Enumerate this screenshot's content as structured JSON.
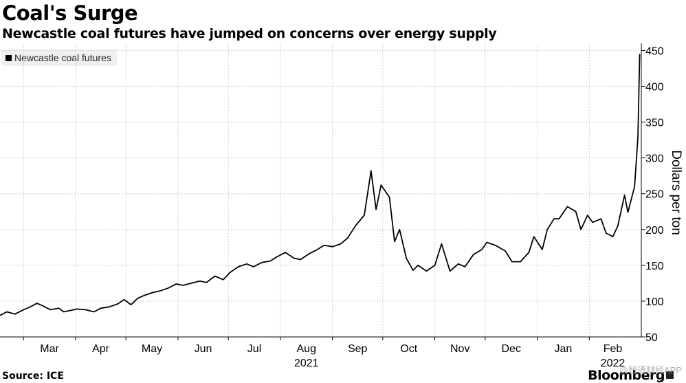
{
  "title": "Coal's Surge",
  "subtitle": "Newcastle coal futures have jumped on concerns over energy supply",
  "source": "Source: ICE",
  "brand": "Bloomberg",
  "watermark": "@智通财经APP",
  "colors": {
    "line": "#000000",
    "grid": "#cfcfcf",
    "legend_bg": "#f0f0f0"
  },
  "chart_data": {
    "type": "line",
    "title": "Coal's Surge",
    "subtitle": "Newcastle coal futures have jumped on concerns over energy supply",
    "ylabel": "Dollars per ton",
    "ylim": [
      50,
      460
    ],
    "yticks": [
      50,
      100,
      150,
      200,
      250,
      300,
      350,
      400,
      450
    ],
    "grid": true,
    "legend_position": "top-left",
    "x_range": [
      "2021-02-15",
      "2022-03-04"
    ],
    "x_month_ticks": [
      {
        "label": "Mar",
        "date": "2021-03-01"
      },
      {
        "label": "Apr",
        "date": "2021-04-01"
      },
      {
        "label": "May",
        "date": "2021-05-01"
      },
      {
        "label": "Jun",
        "date": "2021-06-01"
      },
      {
        "label": "Jul",
        "date": "2021-07-01"
      },
      {
        "label": "Aug",
        "date": "2021-08-01"
      },
      {
        "label": "Sep",
        "date": "2021-09-01"
      },
      {
        "label": "Oct",
        "date": "2021-10-01"
      },
      {
        "label": "Nov",
        "date": "2021-11-01"
      },
      {
        "label": "Dec",
        "date": "2021-12-01"
      },
      {
        "label": "Jan",
        "date": "2022-01-01"
      },
      {
        "label": "Feb",
        "date": "2022-02-01"
      }
    ],
    "x_year_labels": [
      {
        "label": "2021",
        "date": "2021-08-01"
      },
      {
        "label": "2022",
        "date": "2022-02-01"
      }
    ],
    "series": [
      {
        "name": "Newcastle coal futures",
        "x": [
          "2021-02-15",
          "2021-02-19",
          "2021-02-24",
          "2021-03-01",
          "2021-03-05",
          "2021-03-09",
          "2021-03-12",
          "2021-03-17",
          "2021-03-22",
          "2021-03-25",
          "2021-03-29",
          "2021-04-02",
          "2021-04-07",
          "2021-04-12",
          "2021-04-16",
          "2021-04-21",
          "2021-04-26",
          "2021-04-30",
          "2021-05-04",
          "2021-05-08",
          "2021-05-12",
          "2021-05-17",
          "2021-05-21",
          "2021-05-26",
          "2021-05-31",
          "2021-06-04",
          "2021-06-09",
          "2021-06-14",
          "2021-06-18",
          "2021-06-23",
          "2021-06-28",
          "2021-07-02",
          "2021-07-07",
          "2021-07-12",
          "2021-07-16",
          "2021-07-21",
          "2021-07-26",
          "2021-07-30",
          "2021-08-04",
          "2021-08-09",
          "2021-08-13",
          "2021-08-18",
          "2021-08-23",
          "2021-08-27",
          "2021-09-01",
          "2021-09-06",
          "2021-09-10",
          "2021-09-15",
          "2021-09-20",
          "2021-09-24",
          "2021-09-27",
          "2021-09-30",
          "2021-10-05",
          "2021-10-08",
          "2021-10-11",
          "2021-10-15",
          "2021-10-19",
          "2021-10-22",
          "2021-10-27",
          "2021-11-01",
          "2021-11-05",
          "2021-11-10",
          "2021-11-15",
          "2021-11-19",
          "2021-11-24",
          "2021-11-29",
          "2021-12-02",
          "2021-12-07",
          "2021-12-13",
          "2021-12-17",
          "2021-12-22",
          "2021-12-27",
          "2021-12-30",
          "2022-01-04",
          "2022-01-07",
          "2022-01-11",
          "2022-01-14",
          "2022-01-19",
          "2022-01-24",
          "2022-01-27",
          "2022-01-31",
          "2022-02-03",
          "2022-02-08",
          "2022-02-11",
          "2022-02-15",
          "2022-02-18",
          "2022-02-22",
          "2022-02-24",
          "2022-02-28",
          "2022-03-02",
          "2022-03-03"
        ],
        "y": [
          80,
          85,
          82,
          88,
          92,
          97,
          94,
          88,
          90,
          85,
          87,
          89,
          88,
          85,
          90,
          92,
          96,
          102,
          95,
          104,
          108,
          112,
          114,
          118,
          124,
          122,
          125,
          128,
          126,
          135,
          130,
          140,
          148,
          152,
          148,
          154,
          156,
          162,
          168,
          160,
          158,
          166,
          172,
          178,
          176,
          180,
          188,
          206,
          220,
          282,
          228,
          262,
          245,
          183,
          200,
          160,
          143,
          150,
          142,
          150,
          180,
          142,
          152,
          148,
          165,
          172,
          182,
          178,
          170,
          155,
          155,
          168,
          190,
          172,
          200,
          215,
          215,
          232,
          225,
          200,
          220,
          210,
          215,
          195,
          190,
          205,
          248,
          224,
          260,
          330,
          445
        ]
      }
    ]
  }
}
